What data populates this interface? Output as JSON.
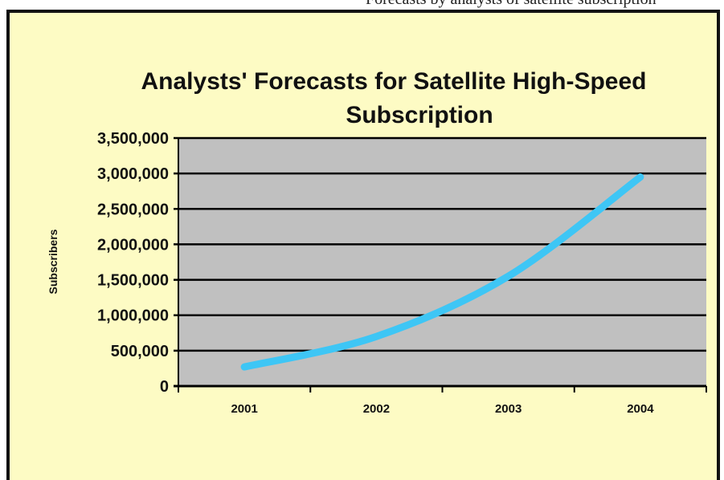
{
  "page": {
    "caption": "Forecasts by analysts of satellite subscription"
  },
  "chart_data": {
    "type": "line",
    "title_lines": [
      "Analysts' Forecasts for Satellite High-Speed",
      "Subscription"
    ],
    "xlabel": "",
    "ylabel": "Subscribers",
    "categories": [
      "2001",
      "2002",
      "2003",
      "2004"
    ],
    "series": [
      {
        "values": [
          270000,
          700000,
          1550000,
          2950000
        ],
        "color": "#3ec6f5"
      }
    ],
    "ylim": [
      0,
      3500000
    ],
    "yticks": [
      0,
      500000,
      1000000,
      1500000,
      2000000,
      2500000,
      3000000,
      3500000
    ],
    "ytick_labels": [
      "0",
      "500,000",
      "1,000,000",
      "1,500,000",
      "2,000,000",
      "2,500,000",
      "3,000,000",
      "3,500,000"
    ],
    "grid": true,
    "legend": "none",
    "colors": {
      "plot_background": "#c0c0c0",
      "chart_background": "#fdfbc4",
      "gridline": "#000000"
    }
  }
}
